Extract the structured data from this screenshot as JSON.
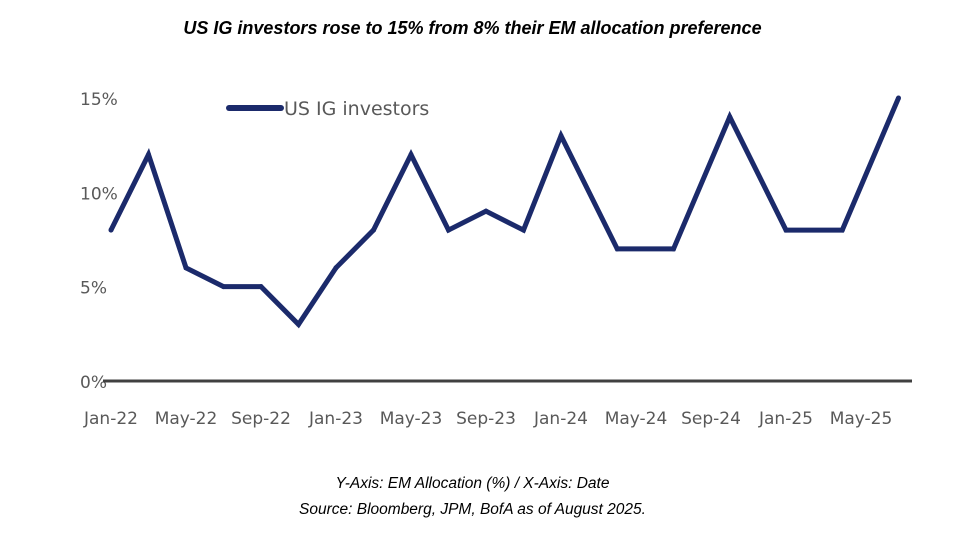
{
  "title": "US IG investors rose to 15% from 8% their EM allocation preference",
  "footer": {
    "axes_note": "Y-Axis: EM Allocation (%) / X-Axis: Date",
    "source": "Source: Bloomberg, JPM, BofA as of August 2025."
  },
  "chart_data": {
    "type": "line",
    "title": "US IG investors rose to 15% from 8% their EM allocation preference",
    "xlabel": "",
    "ylabel": "",
    "ylim": [
      0,
      15
    ],
    "yticks": [
      0,
      5,
      10,
      15
    ],
    "ytick_labels": [
      "0%",
      "5%",
      "10%",
      "15%"
    ],
    "xtick_labels": [
      "Jan-22",
      "May-22",
      "Sep-22",
      "Jan-23",
      "May-23",
      "Sep-23",
      "Jan-24",
      "May-24",
      "Sep-24",
      "Jan-25",
      "May-25"
    ],
    "xticks": [
      "2022-01",
      "2022-05",
      "2022-09",
      "2023-01",
      "2023-05",
      "2023-09",
      "2024-01",
      "2024-05",
      "2024-09",
      "2025-01",
      "2025-05"
    ],
    "grid": false,
    "legend": "top-center",
    "series": [
      {
        "name": "US IG investors",
        "color": "#1b2a6b",
        "x": [
          "2022-01",
          "2022-03",
          "2022-05",
          "2022-07",
          "2022-09",
          "2022-11",
          "2023-01",
          "2023-03",
          "2023-05",
          "2023-07",
          "2023-09",
          "2023-11",
          "2024-01",
          "2024-04",
          "2024-07",
          "2024-10",
          "2025-01",
          "2025-04",
          "2025-07"
        ],
        "values": [
          8,
          12,
          6,
          5,
          5,
          3,
          6,
          8,
          12,
          8,
          9,
          8,
          13,
          7,
          7,
          14,
          8,
          8,
          15
        ]
      }
    ]
  }
}
